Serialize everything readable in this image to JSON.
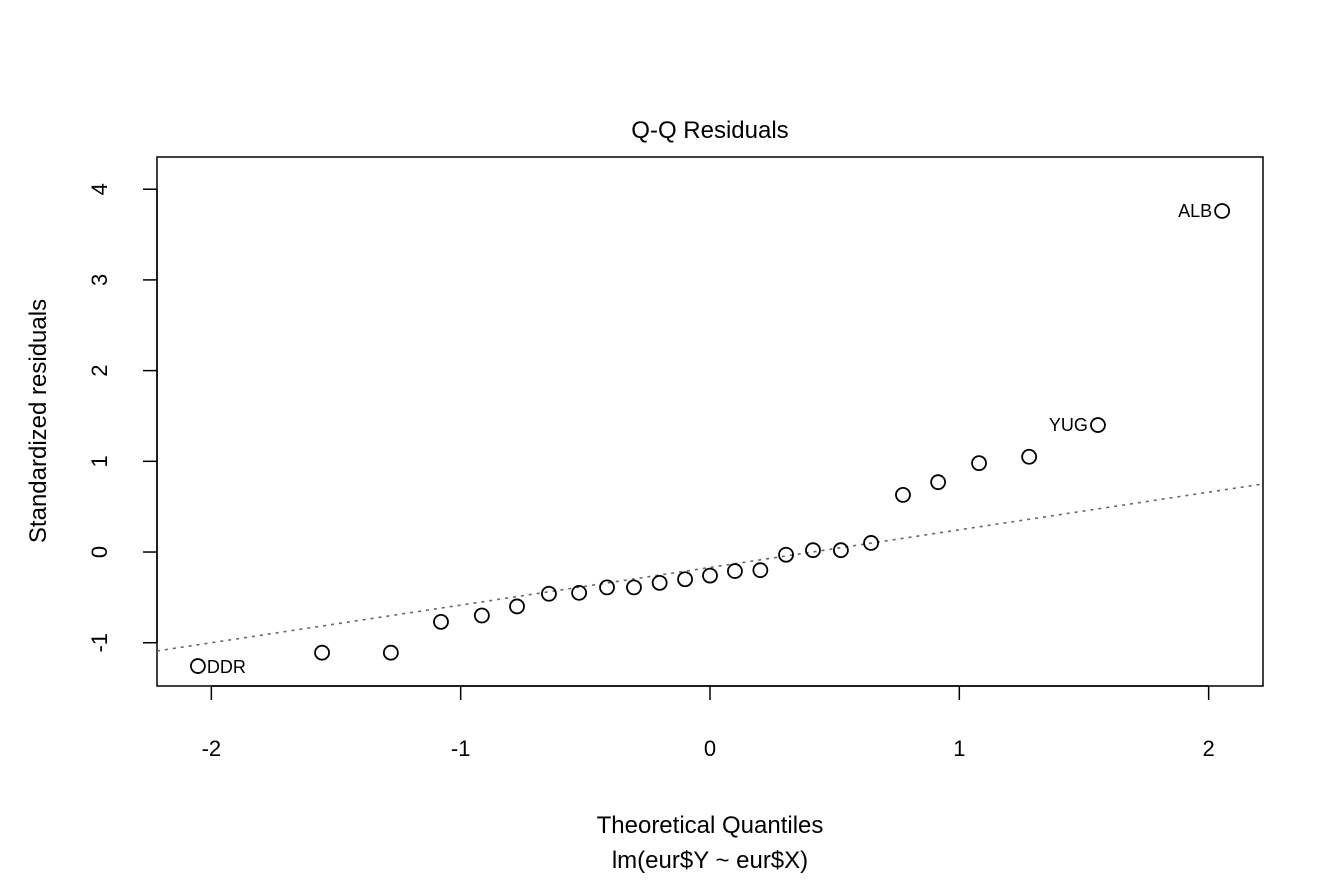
{
  "chart_data": {
    "type": "scatter",
    "title": "Q-Q Residuals",
    "xlabel": "Theoretical Quantiles",
    "sublabel": "lm(eur$Y ~ eur$X)",
    "ylabel": "Standardized residuals",
    "xlim": [
      -2.218,
      2.218
    ],
    "ylim": [
      -1.477,
      4.355
    ],
    "x_ticks": [
      -2,
      -1,
      0,
      1,
      2
    ],
    "x_tick_labels": [
      "-2",
      "-1",
      "0",
      "1",
      "2"
    ],
    "y_ticks": [
      -1,
      0,
      1,
      2,
      3,
      4
    ],
    "y_tick_labels": [
      "-1",
      "0",
      "1",
      "2",
      "3",
      "4"
    ],
    "grid": false,
    "reference_line": {
      "intercept": -0.17,
      "slope": 0.415,
      "style": "dotted",
      "color": "#666666"
    },
    "points": [
      {
        "x": -2.054,
        "y": -1.257,
        "label": "DDR"
      },
      {
        "x": -1.556,
        "y": -1.11
      },
      {
        "x": -1.28,
        "y": -1.11
      },
      {
        "x": -1.079,
        "y": -0.77
      },
      {
        "x": -0.915,
        "y": -0.7
      },
      {
        "x": -0.774,
        "y": -0.6
      },
      {
        "x": -0.646,
        "y": -0.46
      },
      {
        "x": -0.525,
        "y": -0.45
      },
      {
        "x": -0.413,
        "y": -0.39
      },
      {
        "x": -0.305,
        "y": -0.39
      },
      {
        "x": -0.202,
        "y": -0.34
      },
      {
        "x": -0.1,
        "y": -0.3
      },
      {
        "x": 0.0,
        "y": -0.26
      },
      {
        "x": 0.1,
        "y": -0.21
      },
      {
        "x": 0.202,
        "y": -0.2
      },
      {
        "x": 0.305,
        "y": -0.03
      },
      {
        "x": 0.413,
        "y": 0.02
      },
      {
        "x": 0.525,
        "y": 0.02
      },
      {
        "x": 0.646,
        "y": 0.1
      },
      {
        "x": 0.774,
        "y": 0.63
      },
      {
        "x": 0.915,
        "y": 0.77
      },
      {
        "x": 1.079,
        "y": 0.98
      },
      {
        "x": 1.28,
        "y": 1.05
      },
      {
        "x": 1.556,
        "y": 1.4,
        "label": "YUG"
      },
      {
        "x": 2.054,
        "y": 3.76,
        "label": "ALB"
      }
    ]
  }
}
